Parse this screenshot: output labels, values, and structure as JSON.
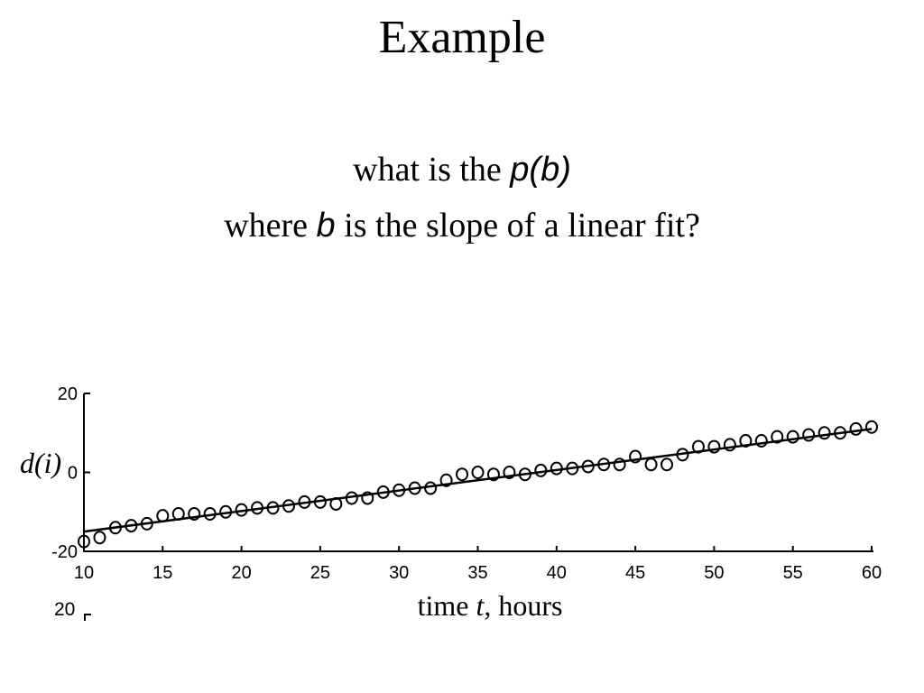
{
  "slide": {
    "title": "Example",
    "question_line1": {
      "before": "what is the ",
      "symbol": "p(b)"
    },
    "question_line2": {
      "before": "where ",
      "symbol": "b",
      "after": " is the slope of a linear fit?"
    },
    "stray_tick": "20"
  },
  "chart_data": {
    "type": "scatter",
    "xlabel": {
      "text": "time ",
      "italic": "t",
      "after": ", hours"
    },
    "ylabel": {
      "before": "d(",
      "italic": "i",
      "after": ")"
    },
    "xlim": [
      10,
      60
    ],
    "ylim": [
      -20,
      20
    ],
    "x_ticks": [
      10,
      15,
      20,
      25,
      30,
      35,
      40,
      45,
      50,
      55,
      60
    ],
    "y_ticks": [
      20,
      0,
      -20
    ],
    "grid": false,
    "marker": "circle",
    "points": {
      "x": [
        10,
        11,
        12,
        13,
        14,
        15,
        16,
        17,
        18,
        19,
        20,
        21,
        22,
        23,
        24,
        25,
        26,
        27,
        28,
        29,
        30,
        31,
        32,
        33,
        34,
        35,
        36,
        37,
        38,
        39,
        40,
        41,
        42,
        43,
        44,
        45,
        46,
        47,
        48,
        49,
        50,
        51,
        52,
        53,
        54,
        55,
        56,
        57,
        58,
        59,
        60
      ],
      "y": [
        -17.5,
        -16.5,
        -14,
        -13.5,
        -13,
        -11,
        -10.5,
        -10.5,
        -10.5,
        -10,
        -9.5,
        -9,
        -9,
        -8.5,
        -7.5,
        -7.5,
        -8,
        -6.5,
        -6.5,
        -5,
        -4.5,
        -4,
        -4,
        -2,
        -0.5,
        0,
        -0.5,
        0,
        -0.5,
        0.5,
        1,
        1,
        1.5,
        2,
        2,
        4,
        2,
        2,
        4.5,
        6.5,
        6.5,
        7,
        8,
        8,
        9,
        9,
        9.5,
        10,
        10,
        11,
        11.5
      ]
    },
    "fit_line": {
      "x": [
        10,
        60
      ],
      "y": [
        -15,
        11
      ]
    },
    "colors": {
      "marker": "#000000",
      "line": "#000000",
      "axis": "#000000"
    }
  }
}
